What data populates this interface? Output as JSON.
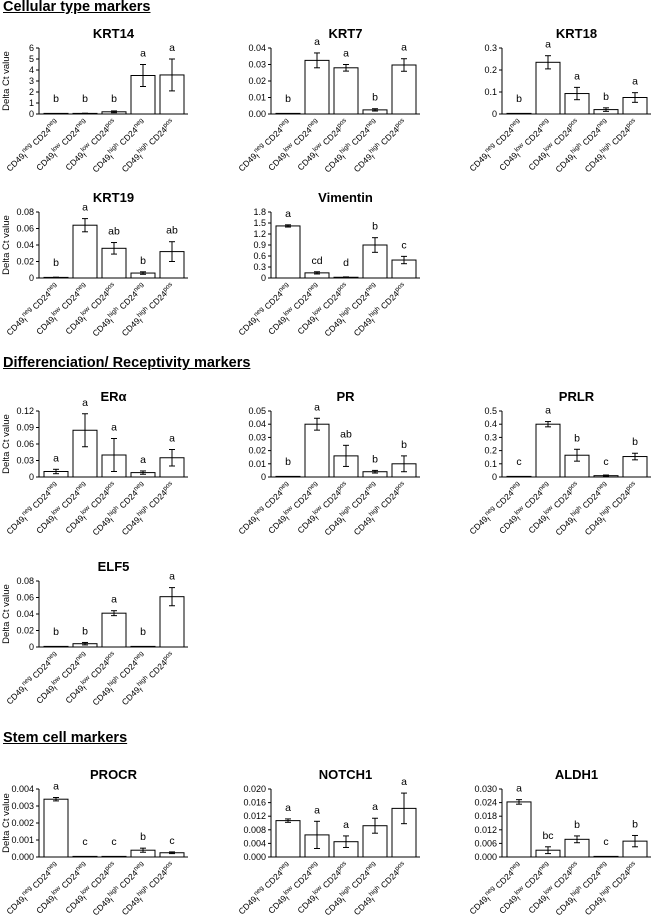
{
  "sections": [
    {
      "title": "Cellular type markers"
    },
    {
      "title": "Differenciation/ Receptivity markers"
    },
    {
      "title": "Stem cell markers"
    }
  ],
  "ylabel": "Delta Ct value",
  "categories": [
    {
      "base": "CD49",
      "sub": "f",
      "sup1": "neg",
      "mid": " CD24",
      "sup2": "neg"
    },
    {
      "base": "CD49",
      "sub": "f",
      "sup1": "low",
      "mid": " CD24",
      "sup2": "neg"
    },
    {
      "base": "CD49",
      "sub": "f",
      "sup1": "low",
      "mid": " CD24",
      "sup2": "pos"
    },
    {
      "base": "CD49",
      "sub": "f",
      "sup1": "high",
      "mid": " CD24",
      "sup2": "neg"
    },
    {
      "base": "CD49",
      "sub": "f",
      "sup1": "high",
      "mid": " CD24",
      "sup2": "pos"
    }
  ],
  "chart_data": [
    {
      "type": "bar",
      "title": "KRT14",
      "ylabel": "Delta Ct value",
      "ylim": [
        0,
        6
      ],
      "yticks": [
        "0",
        "1",
        "2",
        "3",
        "4",
        "5",
        "6"
      ],
      "values": [
        0.02,
        0.05,
        0.2,
        3.5,
        3.55
      ],
      "errors": [
        0,
        0.02,
        0.08,
        1.0,
        1.45
      ],
      "letters": [
        "b",
        "b",
        "b",
        "a",
        "a"
      ]
    },
    {
      "type": "bar",
      "title": "KRT7",
      "ylabel": "",
      "ylim": [
        0,
        0.04
      ],
      "yticks": [
        "0.00",
        "0.01",
        "0.02",
        "0.03",
        "0.04"
      ],
      "values": [
        0.0,
        0.0325,
        0.028,
        0.0025,
        0.0297
      ],
      "errors": [
        0,
        0.0045,
        0.002,
        0.0007,
        0.0038
      ],
      "letters": [
        "b",
        "a",
        "a",
        "b",
        "a"
      ]
    },
    {
      "type": "bar",
      "title": "KRT18",
      "ylabel": "",
      "ylim": [
        0,
        0.3
      ],
      "yticks": [
        "0",
        "0.1",
        "0.2",
        "0.3"
      ],
      "values": [
        0.0,
        0.235,
        0.093,
        0.02,
        0.075
      ],
      "errors": [
        0,
        0.03,
        0.028,
        0.008,
        0.022
      ],
      "letters": [
        "b",
        "a",
        "a",
        "b",
        "a"
      ]
    },
    {
      "type": "bar",
      "title": "KRT19",
      "ylabel": "Delta Ct value",
      "ylim": [
        0,
        0.08
      ],
      "yticks": [
        "0",
        "0.02",
        "0.04",
        "0.06",
        "0.08"
      ],
      "values": [
        0.0007,
        0.064,
        0.036,
        0.006,
        0.032
      ],
      "errors": [
        0.0003,
        0.008,
        0.007,
        0.0015,
        0.012
      ],
      "letters": [
        "b",
        "a",
        "ab",
        "b",
        "ab"
      ]
    },
    {
      "type": "bar",
      "title": "Vimentin",
      "ylabel": "",
      "ylim": [
        0,
        1.8
      ],
      "yticks": [
        "0",
        "0.3",
        "0.6",
        "0.9",
        "1.2",
        "1.5",
        "1.8"
      ],
      "values": [
        1.42,
        0.14,
        0.02,
        0.9,
        0.49
      ],
      "errors": [
        0.03,
        0.03,
        0.01,
        0.2,
        0.1
      ],
      "letters": [
        "a",
        "cd",
        "d",
        "b",
        "c"
      ]
    },
    {
      "type": "bar",
      "title": "ERα",
      "ylabel": "Delta Ct value",
      "ylim": [
        0,
        0.12
      ],
      "yticks": [
        "0",
        "0.03",
        "0.06",
        "0.09",
        "0.12"
      ],
      "values": [
        0.01,
        0.085,
        0.04,
        0.008,
        0.035
      ],
      "errors": [
        0.004,
        0.03,
        0.03,
        0.003,
        0.015
      ],
      "letters": [
        "a",
        "a",
        "a",
        "a",
        "a"
      ]
    },
    {
      "type": "bar",
      "title": "PR",
      "ylabel": "",
      "ylim": [
        0,
        0.05
      ],
      "yticks": [
        "0",
        "0.01",
        "0.02",
        "0.03",
        "0.04",
        "0.05"
      ],
      "values": [
        0.0,
        0.04,
        0.016,
        0.004,
        0.01
      ],
      "errors": [
        0,
        0.0045,
        0.008,
        0.001,
        0.006
      ],
      "letters": [
        "b",
        "a",
        "ab",
        "b",
        "b"
      ]
    },
    {
      "type": "bar",
      "title": "PRLR",
      "ylabel": "",
      "ylim": [
        0,
        0.5
      ],
      "yticks": [
        "0",
        "0.1",
        "0.2",
        "0.3",
        "0.4",
        "0.5"
      ],
      "values": [
        0.0,
        0.4,
        0.165,
        0.01,
        0.155
      ],
      "errors": [
        0,
        0.02,
        0.045,
        0.005,
        0.025
      ],
      "letters": [
        "c",
        "a",
        "b",
        "c",
        "b"
      ]
    },
    {
      "type": "bar",
      "title": "ELF5",
      "ylabel": "Delta Ct value",
      "ylim": [
        0,
        0.08
      ],
      "yticks": [
        "0",
        "0.02",
        "0.04",
        "0.06",
        "0.08"
      ],
      "values": [
        0.0,
        0.004,
        0.041,
        0.0,
        0.061
      ],
      "errors": [
        0,
        0.0015,
        0.003,
        0,
        0.011
      ],
      "letters": [
        "b",
        "b",
        "a",
        "b",
        "a"
      ]
    },
    {
      "type": "bar",
      "title": "PROCR",
      "ylabel": "Delta Ct value",
      "ylim": [
        0,
        0.004
      ],
      "yticks": [
        "0.000",
        "0.001",
        "0.002",
        "0.003",
        "0.004"
      ],
      "values": [
        0.0034,
        0.0,
        0.0,
        0.0004,
        0.00025
      ],
      "errors": [
        0.0001,
        0,
        0,
        0.00012,
        5e-05
      ],
      "letters": [
        "a",
        "c",
        "c",
        "b",
        "c"
      ]
    },
    {
      "type": "bar",
      "title": "NOTCH1",
      "ylabel": "",
      "ylim": [
        0,
        0.02
      ],
      "yticks": [
        "0.000",
        "0.004",
        "0.008",
        "0.012",
        "0.016",
        "0.020"
      ],
      "values": [
        0.0107,
        0.0065,
        0.0045,
        0.0092,
        0.0143
      ],
      "errors": [
        0.0005,
        0.004,
        0.0017,
        0.0022,
        0.0045
      ],
      "letters": [
        "a",
        "a",
        "a",
        "a",
        "a"
      ]
    },
    {
      "type": "bar",
      "title": "ALDH1",
      "ylabel": "",
      "ylim": [
        0,
        0.03
      ],
      "yticks": [
        "0.000",
        "0.006",
        "0.012",
        "0.018",
        "0.024",
        "0.030"
      ],
      "values": [
        0.0243,
        0.003,
        0.0078,
        0.0,
        0.007
      ],
      "errors": [
        0.001,
        0.0015,
        0.0015,
        0,
        0.0025
      ],
      "letters": [
        "a",
        "bc",
        "b",
        "c",
        "b"
      ]
    }
  ]
}
